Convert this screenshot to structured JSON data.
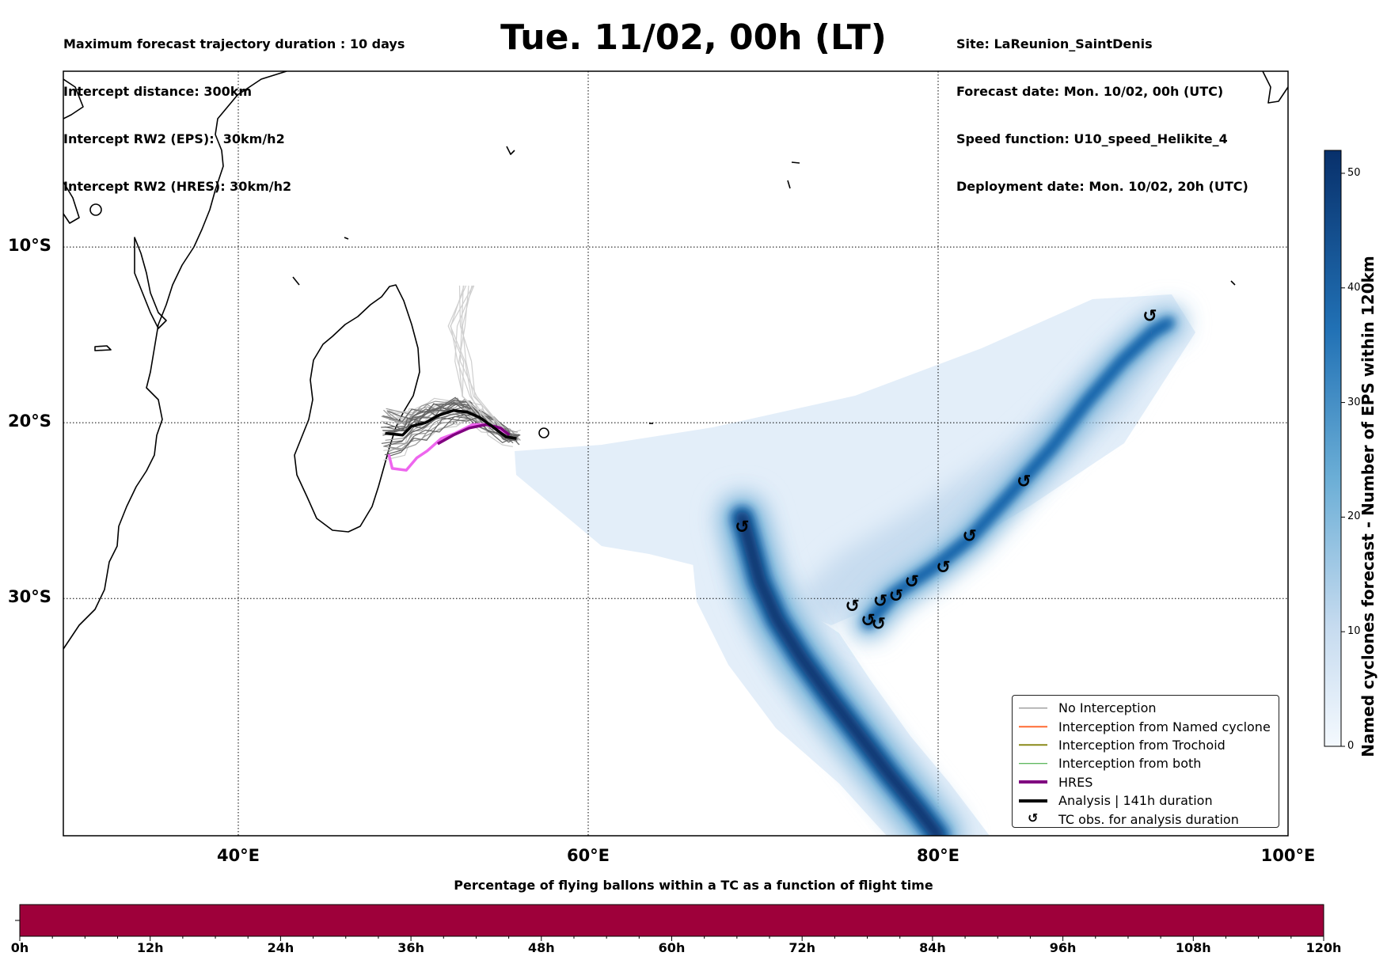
{
  "header_left": [
    "Maximum forecast trajectory duration : 10 days",
    "Intercept distance: 300km",
    "Intercept RW2 (EPS):  30km/h2",
    "Intercept RW2 (HRES): 30km/h2"
  ],
  "title": "Tue. 11/02, 00h (LT)",
  "header_right": [
    "Site: LaReunion_SaintDenis",
    "Forecast date: Mon. 10/02, 00h (UTC)",
    "Speed function: U10_speed_Helikite_4",
    "Deployment date: Mon. 10/02, 20h (UTC)"
  ],
  "map": {
    "lon_range": [
      30,
      100
    ],
    "lat_range": [
      -43.5,
      0
    ],
    "lon_ticks": [
      {
        "value": 40,
        "label": "40°E"
      },
      {
        "value": 60,
        "label": "60°E"
      },
      {
        "value": 80,
        "label": "80°E"
      },
      {
        "value": 100,
        "label": "100°E"
      }
    ],
    "lat_ticks": [
      {
        "value": -10,
        "label": "10°S"
      },
      {
        "value": -20,
        "label": "20°S"
      },
      {
        "value": -30,
        "label": "30°S"
      }
    ],
    "gridlines": true,
    "cyclone_track_a": [
      [
        68.8,
        -25.4
      ],
      [
        69.2,
        -26.8
      ],
      [
        69.8,
        -29
      ],
      [
        70.8,
        -31.2
      ],
      [
        72.2,
        -33.4
      ],
      [
        73.8,
        -35.6
      ],
      [
        75.5,
        -37.8
      ],
      [
        77.2,
        -40
      ],
      [
        79,
        -42.2
      ],
      [
        80,
        -43.5
      ]
    ],
    "cyclone_track_b": [
      [
        76,
        -31.4
      ],
      [
        77.4,
        -29.8
      ],
      [
        79.8,
        -28.2
      ],
      [
        81.8,
        -26.6
      ],
      [
        84,
        -24.2
      ],
      [
        86.5,
        -21.4
      ],
      [
        88.5,
        -18.8
      ],
      [
        90.5,
        -16.5
      ],
      [
        92.3,
        -14.8
      ],
      [
        93.2,
        -14.3
      ]
    ],
    "tc_obs": [
      [
        68.8,
        -25.9
      ],
      [
        84.9,
        -23.3
      ],
      [
        81.8,
        -26.4
      ],
      [
        80.3,
        -28.2
      ],
      [
        78.5,
        -29
      ],
      [
        77.6,
        -29.8
      ],
      [
        76.7,
        -30.1
      ],
      [
        75.1,
        -30.4
      ],
      [
        76.0,
        -31.2
      ],
      [
        76.6,
        -31.4
      ],
      [
        92.1,
        -13.9
      ]
    ],
    "hres_magenta": [
      [
        48.6,
        -21.8
      ],
      [
        48.8,
        -22.6
      ],
      [
        49.6,
        -22.7
      ],
      [
        50.2,
        -22
      ],
      [
        50.8,
        -21.6
      ],
      [
        51.6,
        -20.9
      ],
      [
        52.4,
        -20.6
      ],
      [
        53.4,
        -20.1
      ],
      [
        54.2,
        -20.1
      ],
      [
        55.4,
        -20.6
      ]
    ],
    "hres_purple": [
      [
        51.4,
        -21.2
      ],
      [
        52.3,
        -20.7
      ],
      [
        53.2,
        -20.3
      ],
      [
        54.2,
        -20.1
      ],
      [
        55.0,
        -20.3
      ],
      [
        55.5,
        -20.7
      ]
    ],
    "analysis_track": [
      [
        48.4,
        -20.6
      ],
      [
        49.4,
        -20.7
      ],
      [
        49.9,
        -20.2
      ],
      [
        50.7,
        -20.0
      ],
      [
        51.4,
        -19.6
      ],
      [
        52.3,
        -19.3
      ],
      [
        53.1,
        -19.4
      ],
      [
        53.8,
        -19.7
      ],
      [
        54.5,
        -20.2
      ],
      [
        55.3,
        -20.8
      ],
      [
        55.9,
        -20.9
      ]
    ],
    "colorbar": {
      "min": 0,
      "max": 52,
      "ticks": [
        0,
        10,
        20,
        30,
        40,
        50
      ],
      "label": "Named cyclones forecast - Number of EPS within 120km"
    }
  },
  "legend": [
    {
      "label": "No Interception",
      "color": "#777777",
      "style": "thin"
    },
    {
      "label": "Interception from Named cyclone",
      "color": "#ff6a33",
      "style": "thin"
    },
    {
      "label": "Interception from Trochoid",
      "color": "#8a8a1a",
      "style": "thin"
    },
    {
      "label": "Interception from both",
      "color": "#2ca02c",
      "style": "thin"
    },
    {
      "label": "HRES",
      "color": "#800080",
      "style": "thick"
    },
    {
      "label": "Analysis | 141h duration",
      "color": "#000000",
      "style": "thick"
    },
    {
      "label": "TC obs. for analysis duration",
      "color": "#000000",
      "style": "marker",
      "marker": "↺"
    }
  ],
  "bottom_bar": {
    "title": "Percentage of flying ballons within a TC as a function of flight time",
    "color": "#9e003a",
    "hours": [
      0,
      12,
      24,
      36,
      48,
      60,
      72,
      84,
      96,
      108,
      120
    ],
    "labels": [
      "0h",
      "12h",
      "24h",
      "36h",
      "48h",
      "60h",
      "72h",
      "84h",
      "96h",
      "108h",
      "120h"
    ]
  }
}
